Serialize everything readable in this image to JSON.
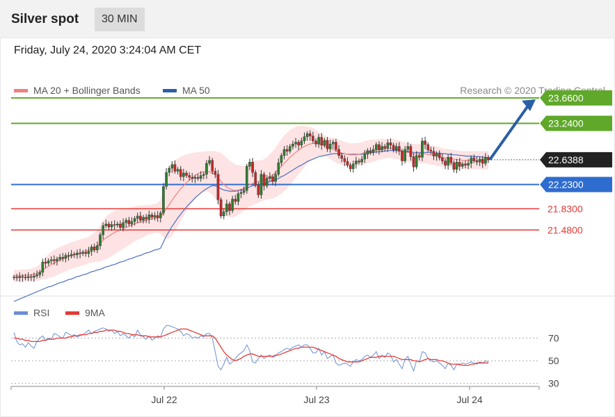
{
  "header": {
    "title": "Silver spot",
    "timeframe": "30 MIN"
  },
  "datetime": "Friday, July 24, 2020 3:24:04 AM CET",
  "legend": {
    "ma20_label": "MA 20 + Bollinger Bands",
    "ma50_label": "MA 50",
    "copyright": "Research © 2020 Trading Central",
    "rsi_label": "RSI",
    "rsi_ma_label": "9MA"
  },
  "colors": {
    "up": "#2e7d32",
    "down": "#c62828",
    "resistance": "#5fa82a",
    "support_blue": "#2f6ccf",
    "support_red": "#e53935",
    "ma20": "#f08080",
    "ma50": "#4a6fbf",
    "band_fill": "#fde3e3",
    "current": "#222222",
    "arrow": "#2b5fa6",
    "rsi": "#6b8fd6",
    "rsi_ma": "#e53935"
  },
  "chart_data": [
    {
      "type": "candlestick",
      "title": "Silver spot",
      "x_tick_labels": [
        "Jul 22",
        "Jul 23",
        "Jul 24"
      ],
      "ylim": [
        20.4,
        23.9
      ],
      "levels": [
        {
          "value": 23.66,
          "label": "23.6600",
          "kind": "resistance"
        },
        {
          "value": 23.24,
          "label": "23.2400",
          "kind": "resistance"
        },
        {
          "value": 22.6388,
          "label": "22.6388",
          "kind": "current"
        },
        {
          "value": 22.23,
          "label": "22.2300",
          "kind": "support_blue"
        },
        {
          "value": 21.83,
          "label": "21.8300",
          "kind": "support_red"
        },
        {
          "value": 21.48,
          "label": "21.4800",
          "kind": "support_red"
        }
      ],
      "close": [
        20.7,
        20.69,
        20.71,
        20.7,
        20.69,
        20.71,
        20.7,
        20.72,
        20.74,
        20.78,
        20.95,
        20.93,
        20.97,
        20.99,
        20.97,
        21.0,
        21.03,
        21.01,
        21.06,
        21.05,
        21.08,
        21.07,
        21.1,
        21.09,
        21.11,
        21.09,
        21.13,
        21.2,
        21.15,
        21.22,
        21.4,
        21.55,
        21.58,
        21.53,
        21.57,
        21.56,
        21.58,
        21.52,
        21.6,
        21.64,
        21.58,
        21.62,
        21.67,
        21.71,
        21.64,
        21.69,
        21.66,
        21.73,
        21.69,
        21.72,
        21.68,
        21.76,
        22.2,
        22.43,
        22.5,
        22.56,
        22.45,
        22.48,
        22.36,
        22.42,
        22.38,
        22.35,
        22.33,
        22.35,
        22.33,
        22.38,
        22.4,
        22.58,
        22.63,
        22.45,
        22.4,
        21.98,
        21.71,
        21.78,
        21.91,
        21.8,
        21.99,
        21.95,
        22.08,
        22.1,
        22.13,
        22.53,
        22.6,
        22.43,
        22.22,
        22.06,
        22.4,
        22.21,
        22.33,
        22.36,
        22.28,
        22.4,
        22.59,
        22.71,
        22.81,
        22.78,
        22.86,
        22.9,
        22.93,
        22.88,
        22.95,
        23.02,
        23.07,
        23.03,
        22.95,
        22.9,
        23.01,
        22.88,
        22.96,
        22.82,
        22.9,
        22.93,
        22.81,
        22.71,
        22.66,
        22.61,
        22.55,
        22.49,
        22.57,
        22.62,
        22.6,
        22.65,
        22.73,
        22.79,
        22.76,
        22.81,
        22.89,
        22.8,
        22.86,
        22.83,
        22.92,
        22.88,
        22.8,
        22.86,
        22.78,
        22.62,
        22.81,
        22.86,
        22.69,
        22.52,
        22.71,
        22.68,
        22.95,
        22.89,
        22.8,
        22.78,
        22.7,
        22.74,
        22.67,
        22.62,
        22.55,
        22.68,
        22.59,
        22.48,
        22.6,
        22.53,
        22.57,
        22.55,
        22.58,
        22.67,
        22.62,
        22.6,
        22.65,
        22.58,
        22.68,
        22.64
      ],
      "ma50": [
        20.3,
        20.32,
        20.34,
        20.36,
        20.38,
        20.4,
        20.42,
        20.44,
        20.46,
        20.48,
        20.5,
        20.52,
        20.54,
        20.55,
        20.57,
        20.59,
        20.61,
        20.62,
        20.64,
        20.66,
        20.67,
        20.69,
        20.71,
        20.72,
        20.74,
        20.75,
        20.77,
        20.79,
        20.8,
        20.82,
        20.83,
        20.85,
        20.87,
        20.88,
        20.9,
        20.91,
        20.93,
        20.95,
        20.96,
        20.98,
        21.0,
        21.01,
        21.03,
        21.05,
        21.06,
        21.08,
        21.1,
        21.11,
        21.13,
        21.15,
        21.16,
        21.18,
        21.28,
        21.38,
        21.46,
        21.54,
        21.61,
        21.68,
        21.74,
        21.8,
        21.86,
        21.91,
        21.96,
        22.01,
        22.05,
        22.09,
        22.13,
        22.16,
        22.19,
        22.21,
        22.21,
        22.19,
        22.16,
        22.14,
        22.13,
        22.12,
        22.12,
        22.12,
        22.13,
        22.14,
        22.15,
        22.17,
        22.19,
        22.21,
        22.22,
        22.23,
        22.24,
        22.25,
        22.26,
        22.28,
        22.29,
        22.31,
        22.33,
        22.36,
        22.38,
        22.41,
        22.44,
        22.47,
        22.5,
        22.53,
        22.55,
        22.58,
        22.61,
        22.63,
        22.65,
        22.67,
        22.69,
        22.7,
        22.71,
        22.72,
        22.73,
        22.74,
        22.74,
        22.74,
        22.74,
        22.74,
        22.73,
        22.73,
        22.73,
        22.73,
        22.73,
        22.73,
        22.74,
        22.75,
        22.75,
        22.76,
        22.77,
        22.77,
        22.78,
        22.78,
        22.79,
        22.79,
        22.79,
        22.79,
        22.79,
        22.78,
        22.78,
        22.78,
        22.77,
        22.76,
        22.76,
        22.76,
        22.76,
        22.76,
        22.76,
        22.76,
        22.75,
        22.75,
        22.75,
        22.74,
        22.74,
        22.73,
        22.73,
        22.72,
        22.72,
        22.71,
        22.71,
        22.7,
        22.7,
        22.7,
        22.69,
        22.69,
        22.69,
        22.68,
        22.68,
        22.67
      ],
      "ma20": [
        20.72,
        20.72,
        20.72,
        20.73,
        20.73,
        20.73,
        20.74,
        20.75,
        20.76,
        20.78,
        20.82,
        20.85,
        20.88,
        20.91,
        20.93,
        20.96,
        20.98,
        21.0,
        21.02,
        21.04,
        21.06,
        21.07,
        21.09,
        21.1,
        21.12,
        21.13,
        21.15,
        21.17,
        21.19,
        21.22,
        21.26,
        21.31,
        21.35,
        21.38,
        21.41,
        21.44,
        21.46,
        21.48,
        21.5,
        21.52,
        21.54,
        21.56,
        21.58,
        21.6,
        21.61,
        21.62,
        21.64,
        21.65,
        21.66,
        21.67,
        21.68,
        21.7,
        21.76,
        21.83,
        21.9,
        21.97,
        22.04,
        22.1,
        22.16,
        22.21,
        22.26,
        22.3,
        22.34,
        22.38,
        22.41,
        22.43,
        22.44,
        22.45,
        22.44,
        22.42,
        22.39,
        22.34,
        22.28,
        22.23,
        22.19,
        22.16,
        22.14,
        22.13,
        22.14,
        22.15,
        22.17,
        22.2,
        22.23,
        22.25,
        22.27,
        22.28,
        22.29,
        22.31,
        22.33,
        22.36,
        22.39,
        22.43,
        22.48,
        22.53,
        22.58,
        22.63,
        22.68,
        22.72,
        22.76,
        22.8,
        22.83,
        22.86,
        22.88,
        22.9,
        22.91,
        22.91,
        22.9,
        22.89,
        22.87,
        22.85,
        22.83,
        22.81,
        22.79,
        22.77,
        22.75,
        22.74,
        22.73,
        22.72,
        22.72,
        22.72,
        22.73,
        22.74,
        22.76,
        22.77,
        22.78,
        22.79,
        22.8,
        22.81,
        22.82,
        22.82,
        22.83,
        22.83,
        22.82,
        22.81,
        22.8,
        22.78,
        22.77,
        22.76,
        22.75,
        22.74,
        22.74,
        22.74,
        22.74,
        22.74,
        22.73,
        22.72,
        22.71,
        22.7,
        22.69,
        22.68,
        22.67,
        22.67,
        22.66,
        22.65,
        22.64,
        22.64,
        22.63,
        22.63,
        22.63,
        22.63,
        22.63,
        22.63,
        22.63,
        22.63,
        22.63,
        22.63
      ],
      "band_halfwidth": [
        0.1,
        0.1,
        0.1,
        0.1,
        0.1,
        0.1,
        0.1,
        0.11,
        0.12,
        0.13,
        0.16,
        0.18,
        0.2,
        0.21,
        0.22,
        0.22,
        0.22,
        0.22,
        0.22,
        0.22,
        0.22,
        0.22,
        0.22,
        0.22,
        0.22,
        0.22,
        0.22,
        0.23,
        0.24,
        0.26,
        0.3,
        0.33,
        0.35,
        0.36,
        0.36,
        0.36,
        0.35,
        0.34,
        0.33,
        0.32,
        0.31,
        0.3,
        0.29,
        0.28,
        0.27,
        0.26,
        0.25,
        0.24,
        0.24,
        0.24,
        0.25,
        0.28,
        0.4,
        0.5,
        0.56,
        0.58,
        0.58,
        0.56,
        0.53,
        0.5,
        0.47,
        0.44,
        0.41,
        0.38,
        0.36,
        0.34,
        0.33,
        0.33,
        0.34,
        0.36,
        0.39,
        0.43,
        0.47,
        0.48,
        0.48,
        0.47,
        0.45,
        0.43,
        0.41,
        0.39,
        0.37,
        0.36,
        0.36,
        0.36,
        0.36,
        0.35,
        0.34,
        0.34,
        0.35,
        0.37,
        0.39,
        0.41,
        0.43,
        0.45,
        0.46,
        0.46,
        0.45,
        0.44,
        0.42,
        0.4,
        0.37,
        0.34,
        0.31,
        0.28,
        0.25,
        0.22,
        0.2,
        0.18,
        0.17,
        0.17,
        0.18,
        0.19,
        0.2,
        0.2,
        0.2,
        0.2,
        0.19,
        0.19,
        0.19,
        0.19,
        0.19,
        0.19,
        0.19,
        0.19,
        0.19,
        0.18,
        0.18,
        0.17,
        0.17,
        0.16,
        0.16,
        0.16,
        0.16,
        0.16,
        0.16,
        0.16,
        0.16,
        0.16,
        0.16,
        0.16,
        0.16,
        0.16,
        0.16,
        0.16,
        0.16,
        0.16,
        0.16,
        0.16,
        0.16,
        0.15,
        0.15,
        0.15,
        0.15,
        0.15,
        0.15,
        0.15,
        0.15,
        0.15,
        0.15,
        0.15,
        0.15,
        0.15,
        0.15,
        0.15,
        0.15,
        0.15,
        0.15,
        0.15
      ],
      "forecast_arrow": {
        "from": 22.64,
        "to": 23.66
      }
    },
    {
      "type": "line",
      "title": "RSI",
      "ylim": [
        20,
        85
      ],
      "y_ticks": [
        70,
        50,
        30
      ],
      "series": [
        {
          "name": "RSI",
          "values": [
            75,
            67,
            64,
            65,
            62,
            66,
            63,
            61,
            67,
            70,
            72,
            68,
            70,
            69,
            74,
            73,
            71,
            70,
            75,
            74,
            72,
            73,
            71,
            72,
            73,
            75,
            77,
            74,
            76,
            77,
            78,
            79,
            78,
            76,
            77,
            74,
            76,
            72,
            74,
            72,
            70,
            73,
            71,
            77,
            73,
            71,
            69,
            72,
            68,
            70,
            72,
            71,
            78,
            81,
            81,
            80,
            79,
            78,
            76,
            72,
            74,
            73,
            70,
            71,
            70,
            72,
            71,
            74,
            74,
            70,
            58,
            45,
            42,
            47,
            53,
            47,
            49,
            52,
            55,
            57,
            59,
            64,
            59,
            49,
            48,
            52,
            55,
            52,
            54,
            55,
            53,
            54,
            57,
            58,
            60,
            61,
            60,
            62,
            63,
            64,
            62,
            64,
            64,
            61,
            57,
            57,
            61,
            55,
            58,
            52,
            54,
            55,
            48,
            46,
            47,
            48,
            47,
            45,
            49,
            51,
            50,
            51,
            54,
            55,
            53,
            55,
            58,
            52,
            55,
            53,
            57,
            55,
            49,
            51,
            47,
            43,
            51,
            54,
            47,
            41,
            50,
            49,
            58,
            57,
            52,
            50,
            49,
            50,
            48,
            46,
            43,
            48,
            46,
            42,
            47,
            46,
            48,
            47,
            48,
            49,
            48,
            47,
            49,
            48,
            50,
            49
          ]
        },
        {
          "name": "9MA",
          "values": [
            70,
            70,
            69,
            69,
            68,
            68,
            67,
            67,
            67,
            67,
            68,
            68,
            69,
            69,
            69,
            70,
            70,
            70,
            70,
            71,
            71,
            72,
            72,
            73,
            73,
            73,
            74,
            74,
            75,
            75,
            76,
            76,
            77,
            77,
            77,
            77,
            76,
            76,
            75,
            74,
            74,
            73,
            73,
            73,
            72,
            72,
            72,
            71,
            71,
            71,
            71,
            71,
            72,
            73,
            74,
            75,
            76,
            77,
            78,
            78,
            78,
            77,
            76,
            75,
            74,
            73,
            72,
            72,
            72,
            72,
            70,
            66,
            62,
            58,
            55,
            53,
            51,
            50,
            51,
            52,
            54,
            55,
            56,
            56,
            55,
            54,
            54,
            54,
            54,
            54,
            54,
            55,
            55,
            56,
            57,
            58,
            59,
            60,
            61,
            61,
            62,
            62,
            62,
            62,
            62,
            61,
            60,
            59,
            58,
            57,
            56,
            55,
            54,
            52,
            51,
            50,
            49,
            49,
            49,
            49,
            49,
            50,
            51,
            52,
            53,
            53,
            53,
            54,
            54,
            54,
            54,
            54,
            54,
            53,
            52,
            51,
            51,
            51,
            51,
            50,
            50,
            49,
            50,
            51,
            52,
            51,
            51,
            51,
            50,
            50,
            49,
            48,
            47,
            47,
            47,
            47,
            46,
            46,
            46,
            47,
            47,
            48,
            48,
            48,
            48,
            48
          ]
        }
      ]
    }
  ]
}
